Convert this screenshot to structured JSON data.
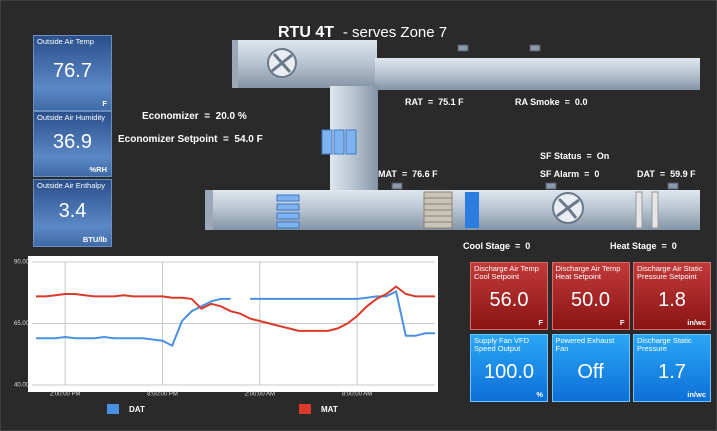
{
  "header": {
    "title": "RTU 4T",
    "subtitle": "- serves Zone 7"
  },
  "left_tiles": [
    {
      "label": "Outside Air Temp",
      "value": "76.7",
      "unit": "F"
    },
    {
      "label": "Outside Air Humidity",
      "value": "36.9",
      "unit": "%RH"
    },
    {
      "label": "Outside Air Enthalpy",
      "value": "3.4",
      "unit": "BTU/lb"
    }
  ],
  "readouts": {
    "economizer": "Economizer  =  20.0 %",
    "economizer_setpoint": "Economizer Setpoint  =  54.0 F",
    "rat": "RAT  =  75.1 F",
    "ra_smoke": "RA Smoke  =  0.0",
    "sf_status": "SF Status  =  On",
    "mat": "MAT  =  76.6 F",
    "sf_alarm": "SF Alarm  =  0",
    "dat": "DAT  =  59.9 F",
    "cool_stage": "Cool Stage  =  0",
    "heat_stage": "Heat Stage  =  0"
  },
  "chart_data": {
    "type": "line",
    "categories": [
      null,
      null,
      null,
      "2:00:00 PM",
      null,
      null,
      null,
      null,
      null,
      null,
      null,
      null,
      null,
      "8:00:00 PM",
      null,
      null,
      null,
      null,
      null,
      null,
      null,
      null,
      null,
      "2:00:00 AM",
      null,
      null,
      null,
      null,
      null,
      null,
      null,
      null,
      null,
      "8:00:00 AM",
      null,
      null,
      null,
      null,
      null,
      null,
      null,
      null
    ],
    "series": [
      {
        "name": "DAT",
        "color": "#4a90e2",
        "values": [
          59,
          59,
          59,
          59.5,
          59,
          59,
          59,
          59.5,
          59,
          59,
          59,
          59,
          58.5,
          58,
          56,
          66,
          70,
          72,
          74,
          75,
          75,
          null,
          75,
          75,
          75,
          75,
          75,
          75,
          75,
          75,
          75,
          75,
          75,
          75,
          75.5,
          76,
          76,
          78,
          60,
          60,
          61,
          61
        ]
      },
      {
        "name": "MAT",
        "color": "#d93a2b",
        "values": [
          76,
          76,
          76.5,
          77,
          77,
          76.5,
          76,
          76,
          76,
          76.5,
          76,
          76,
          76,
          76,
          75.5,
          75.5,
          75,
          71,
          73,
          72,
          70,
          69,
          67,
          66,
          65,
          64,
          63,
          62,
          62,
          62,
          62,
          63,
          65,
          68,
          72,
          75,
          77,
          80,
          77,
          76,
          76,
          76
        ]
      }
    ],
    "ylim": [
      40,
      90
    ],
    "yticks": [
      {
        "value": 40,
        "label": "40.00"
      },
      {
        "value": 65,
        "label": "65.00"
      },
      {
        "value": 90,
        "label": "90.00"
      }
    ],
    "grid": true
  },
  "right_tiles": [
    {
      "label": "Discharge Air Temp Cool Setpoint",
      "value": "56.0",
      "unit": "F",
      "color": "red"
    },
    {
      "label": "Discharge Air Temp Heat Setpoint",
      "value": "50.0",
      "unit": "F",
      "color": "red"
    },
    {
      "label": "Discharge Air Static Pressure Setpoint",
      "value": "1.8",
      "unit": "in/wc",
      "color": "red"
    },
    {
      "label": "Supply Fan VFD Speed Output",
      "value": "100.0",
      "unit": "%",
      "color": "blue"
    },
    {
      "label": "Powered Exhaust Fan",
      "value": "Off",
      "unit": "",
      "color": "blue"
    },
    {
      "label": "Discharge Static Pressure",
      "value": "1.7",
      "unit": "in/wc",
      "color": "blue"
    }
  ]
}
